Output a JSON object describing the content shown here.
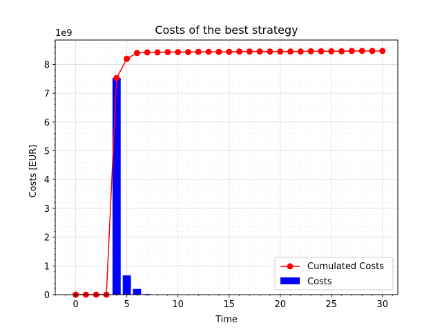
{
  "chart_data": {
    "type": "bar+line",
    "title": "Costs of the best strategy",
    "xlabel": "Time",
    "ylabel": "Costs [EUR]",
    "y_offset_text": "1e9",
    "xlim": [
      -2,
      31.5
    ],
    "ylim": [
      0,
      8.85
    ],
    "x_ticks": [
      0,
      5,
      10,
      15,
      20,
      25,
      30
    ],
    "y_ticks": [
      0,
      1,
      2,
      3,
      4,
      5,
      6,
      7,
      8
    ],
    "grid": "major and minor",
    "legend_position": "lower-right",
    "series": [
      {
        "name": "Cumulated Costs",
        "kind": "line",
        "color": "#ff0000",
        "marker": "circle",
        "x": [
          0,
          1,
          2,
          3,
          4,
          5,
          6,
          7,
          8,
          9,
          10,
          11,
          12,
          13,
          14,
          15,
          16,
          17,
          18,
          19,
          20,
          21,
          22,
          23,
          24,
          25,
          26,
          27,
          28,
          29,
          30
        ],
        "y": [
          0,
          0,
          0,
          0,
          7.53,
          8.2,
          8.4,
          8.42,
          8.42,
          8.43,
          8.43,
          8.43,
          8.44,
          8.44,
          8.44,
          8.44,
          8.45,
          8.45,
          8.45,
          8.45,
          8.45,
          8.45,
          8.45,
          8.46,
          8.46,
          8.46,
          8.46,
          8.47,
          8.47,
          8.47,
          8.47
        ]
      },
      {
        "name": "Costs",
        "kind": "bar",
        "color": "#0000ff",
        "x": [
          4,
          5,
          6,
          7
        ],
        "y": [
          7.53,
          0.67,
          0.2,
          0.02
        ]
      }
    ]
  }
}
